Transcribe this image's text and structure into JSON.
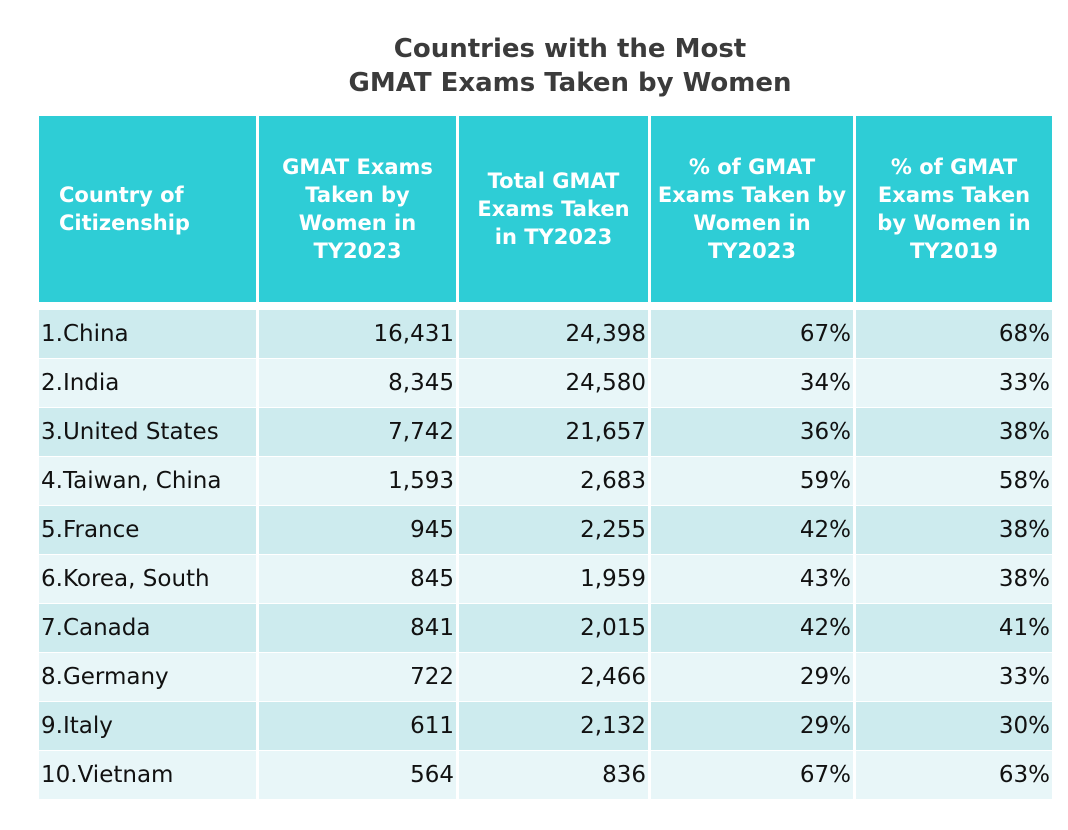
{
  "title": {
    "line1": "Countries with the Most",
    "line2": "GMAT Exams Taken by Women"
  },
  "colors": {
    "header_bg": "#2ecdd6",
    "header_text": "#ffffff",
    "row_odd": "#cdebee",
    "row_even": "#e8f6f8"
  },
  "chart_data": {
    "type": "table",
    "title": "Countries with the Most GMAT Exams Taken by Women",
    "columns": [
      "Country of Citizenship",
      "GMAT Exams Taken by Women in TY2023",
      "Total GMAT Exams Taken in TY2023",
      "% of GMAT Exams Taken by Women in TY2023",
      "% of GMAT Exams Taken by Women in TY2019"
    ],
    "rows": [
      [
        "1.China",
        "16,431",
        "24,398",
        "67%",
        "68%"
      ],
      [
        "2.India",
        "8,345",
        "24,580",
        "34%",
        "33%"
      ],
      [
        "3.United States",
        "7,742",
        "21,657",
        "36%",
        "38%"
      ],
      [
        "4.Taiwan, China",
        "1,593",
        "2,683",
        "59%",
        "58%"
      ],
      [
        "5.France",
        "945",
        "2,255",
        "42%",
        "38%"
      ],
      [
        "6.Korea, South",
        "845",
        "1,959",
        "43%",
        "38%"
      ],
      [
        "7.Canada",
        "841",
        "2,015",
        "42%",
        "41%"
      ],
      [
        "8.Germany",
        "722",
        "2,466",
        "29%",
        "33%"
      ],
      [
        "9.Italy",
        "611",
        "2,132",
        "29%",
        "30%"
      ],
      [
        "10.Vietnam",
        "564",
        "836",
        "67%",
        "63%"
      ]
    ]
  }
}
